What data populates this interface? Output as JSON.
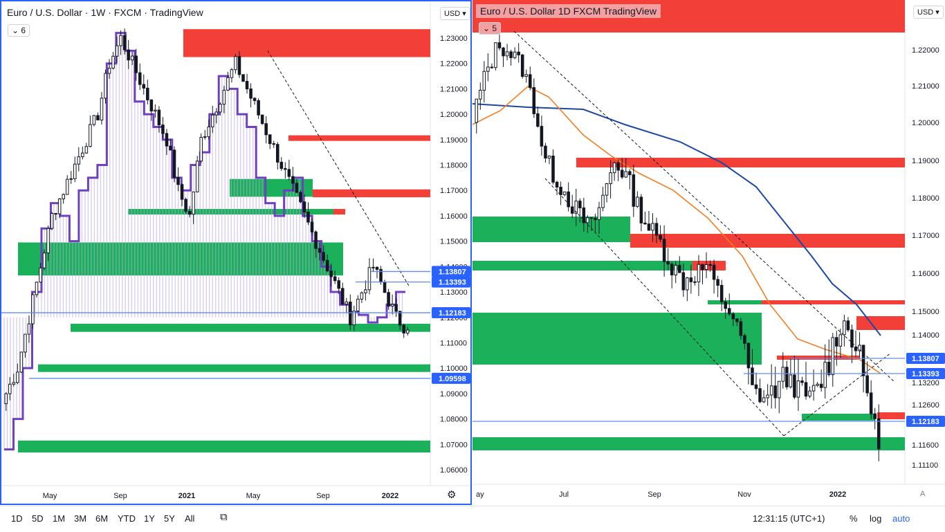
{
  "left_chart": {
    "title": "Euro / U.S. Dollar · 1W · FXCM · TradingView",
    "badge": "6",
    "currency": "USD",
    "y_ticks": [
      "1.23000",
      "1.22000",
      "1.21000",
      "1.20000",
      "1.19000",
      "1.18000",
      "1.17000",
      "1.16000",
      "1.15000",
      "1.14000",
      "1.13000",
      "1.12000",
      "1.11000",
      "1.10000",
      "1.09000",
      "1.08000",
      "1.07000",
      "1.06000"
    ],
    "x_ticks": [
      "May",
      "Sep",
      "2021",
      "May",
      "Sep",
      "2022"
    ],
    "price_tags": [
      "1.13807",
      "1.13393",
      "1.12183",
      "1.09598"
    ]
  },
  "right_chart": {
    "title": "Euro / U.S. Dollar  1D  FXCM  TradingView",
    "badge": "5",
    "currency": "USD",
    "y_ticks": [
      "1.22000",
      "1.21000",
      "1.20000",
      "1.19000",
      "1.18000",
      "1.17000",
      "1.16000",
      "1.15000",
      "1.14000",
      "1.13200",
      "1.12600",
      "1.11600",
      "1.11100"
    ],
    "x_ticks": [
      "ay",
      "Jul",
      "Sep",
      "Nov",
      "2022"
    ],
    "price_tags": [
      "1.13807",
      "1.13393",
      "1.12183"
    ],
    "corner": "A"
  },
  "chart_data": [
    {
      "type": "candlestick",
      "title": "Euro / U.S. Dollar · 1W · FXCM · TradingView",
      "timeframe": "1W",
      "x": [
        "May",
        "Sep",
        "2021",
        "May",
        "Sep",
        "2022"
      ],
      "ylim": [
        1.06,
        1.235
      ],
      "support_resistance_levels": [
        1.13807,
        1.13393,
        1.12183,
        1.09598
      ],
      "close_approx": [
        1.09,
        1.1,
        1.12,
        1.14,
        1.16,
        1.17,
        1.18,
        1.19,
        1.2,
        1.22,
        1.23,
        1.22,
        1.21,
        1.2,
        1.19,
        1.17,
        1.16,
        1.19,
        1.2,
        1.21,
        1.22,
        1.21,
        1.2,
        1.19,
        1.18,
        1.17,
        1.16,
        1.15,
        1.14,
        1.13,
        1.12,
        1.13,
        1.14,
        1.13,
        1.12,
        1.115
      ]
    },
    {
      "type": "candlestick",
      "title": "Euro / U.S. Dollar  1D  FXCM  TradingView",
      "timeframe": "1D",
      "x": [
        "ay",
        "Jul",
        "Sep",
        "Nov",
        "2022"
      ],
      "ylim": [
        1.109,
        1.226
      ],
      "support_resistance_levels": [
        1.13807,
        1.13393,
        1.12183
      ],
      "close_approx": [
        1.205,
        1.215,
        1.222,
        1.219,
        1.215,
        1.205,
        1.19,
        1.185,
        1.18,
        1.175,
        1.172,
        1.18,
        1.19,
        1.186,
        1.178,
        1.172,
        1.168,
        1.162,
        1.158,
        1.16,
        1.162,
        1.155,
        1.15,
        1.14,
        1.13,
        1.128,
        1.13,
        1.133,
        1.13,
        1.128,
        1.132,
        1.138,
        1.145,
        1.138,
        1.13,
        1.115
      ]
    }
  ],
  "toolbar": {
    "ranges": [
      "1D",
      "5D",
      "1M",
      "3M",
      "6M",
      "YTD",
      "1Y",
      "5Y",
      "All"
    ],
    "time": "12:31:15 (UTC+1)",
    "percent": "%",
    "log": "log",
    "auto": "auto"
  }
}
